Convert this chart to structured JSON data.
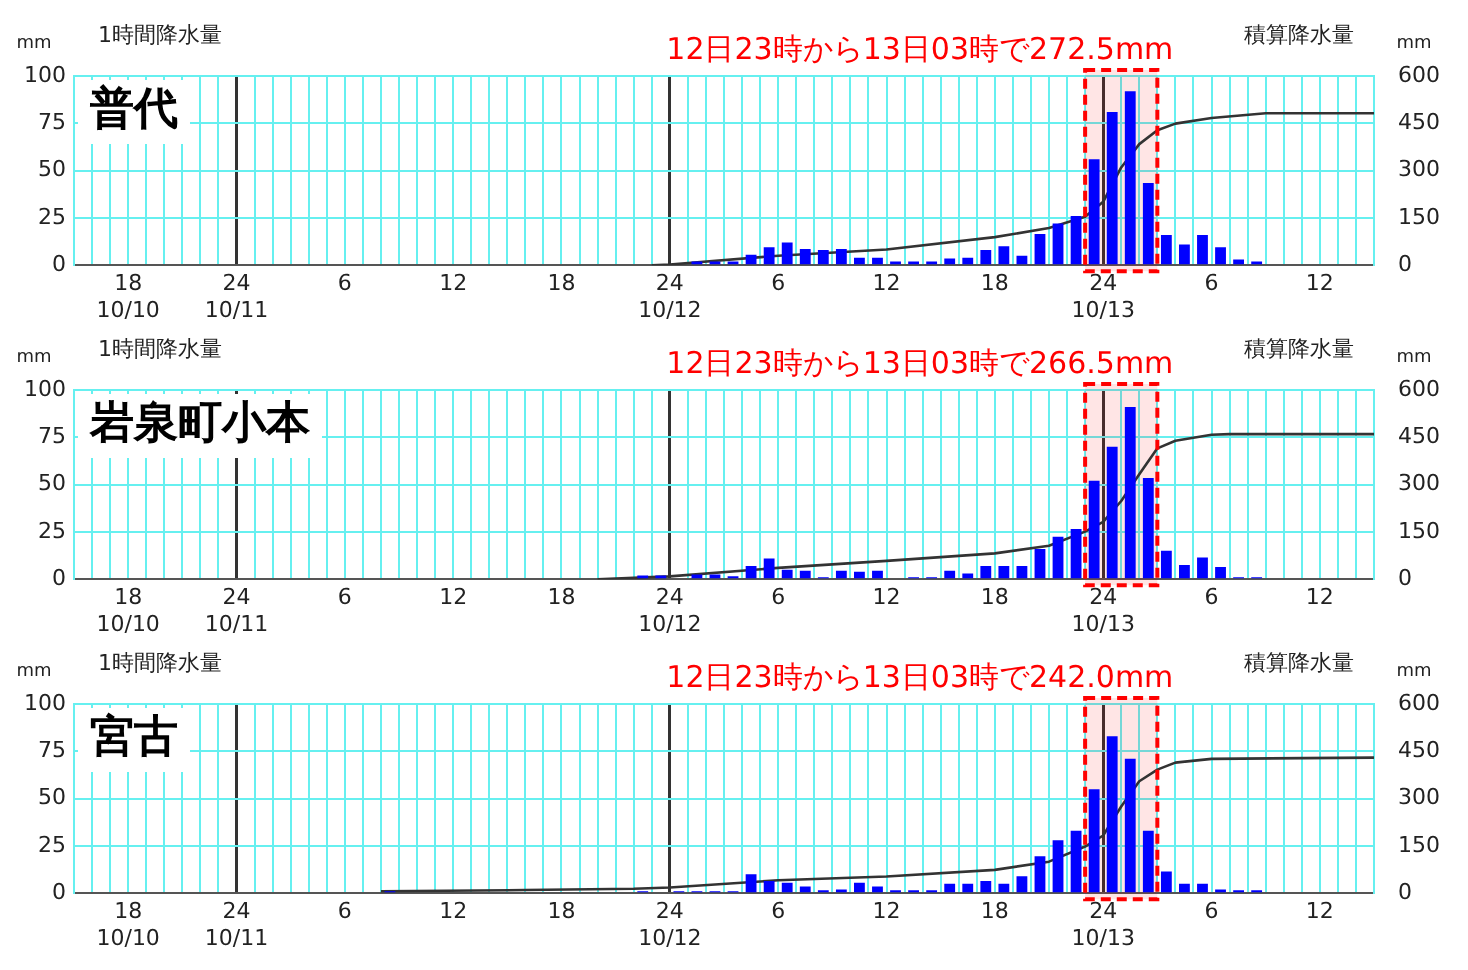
{
  "chart_data": [
    {
      "type": "bar",
      "title": "普代",
      "ylabel": "1時間降水量",
      "y2label": "積算降水量",
      "annotations": [
        "mm",
        "mm"
      ],
      "xlim": [
        "--10-10T15:00",
        "--10-13T15:00"
      ],
      "ylim": [
        0,
        100
      ],
      "yticks": [
        0,
        25,
        50,
        75,
        100
      ],
      "y2lim": [
        0,
        600
      ],
      "y2ticks": [
        0,
        150,
        300,
        450,
        600
      ],
      "grid": true,
      "marker": "none",
      "line_style": "solid",
      "xticks": [
        {
          "value": "--10-10T15:00",
          "label": null
        },
        {
          "value": "--10-10T16:00",
          "label": null
        },
        {
          "value": "--10-10T17:00",
          "label": null
        },
        {
          "value": "--10-10T18:00",
          "label": "18\n10/10"
        },
        {
          "value": "--10-10T19:00",
          "label": null
        },
        {
          "value": "--10-10T20:00",
          "label": null
        },
        {
          "value": "--10-10T21:00",
          "label": null
        },
        {
          "value": "--10-10T22:00",
          "label": null
        },
        {
          "value": "--10-10T23:00",
          "label": null
        },
        {
          "value": "--10-11T00:00",
          "label": "24\n10/11"
        },
        {
          "value": "--10-11T01:00",
          "label": null
        },
        {
          "value": "--10-11T02:00",
          "label": null
        },
        {
          "value": "--10-11T03:00",
          "label": null
        },
        {
          "value": "--10-11T04:00",
          "label": null
        },
        {
          "value": "--10-11T05:00",
          "label": null
        },
        {
          "value": "--10-11T06:00",
          "label": "6"
        },
        {
          "value": "--10-11T07:00",
          "label": null
        },
        {
          "value": "--10-11T08:00",
          "label": null
        },
        {
          "value": "--10-11T09:00",
          "label": null
        },
        {
          "value": "--10-11T10:00",
          "label": null
        },
        {
          "value": "--10-11T11:00",
          "label": null
        },
        {
          "value": "--10-11T12:00",
          "label": "12"
        },
        {
          "value": "--10-11T13:00",
          "label": null
        },
        {
          "value": "--10-11T14:00",
          "label": null
        },
        {
          "value": "--10-11T15:00",
          "label": null
        },
        {
          "value": "--10-11T16:00",
          "label": null
        },
        {
          "value": "--10-11T17:00",
          "label": null
        },
        {
          "value": "--10-11T18:00",
          "label": "18"
        },
        {
          "value": "--10-11T19:00",
          "label": null
        },
        {
          "value": "--10-11T20:00",
          "label": null
        },
        {
          "value": "--10-11T21:00",
          "label": null
        },
        {
          "value": "--10-11T22:00",
          "label": null
        },
        {
          "value": "--10-11T23:00",
          "label": null
        },
        {
          "value": "--10-12T00:00",
          "label": "24\n10/12"
        },
        {
          "value": "--10-12T01:00",
          "label": null
        },
        {
          "value": "--10-12T02:00",
          "label": null
        },
        {
          "value": "--10-12T03:00",
          "label": null
        },
        {
          "value": "--10-12T04:00",
          "label": null
        },
        {
          "value": "--10-12T05:00",
          "label": null
        },
        {
          "value": "--10-12T06:00",
          "label": "6"
        },
        {
          "value": "--10-12T07:00",
          "label": null
        },
        {
          "value": "--10-12T08:00",
          "label": null
        },
        {
          "value": "--10-12T09:00",
          "label": null
        },
        {
          "value": "--10-12T10:00",
          "label": null
        },
        {
          "value": "--10-12T11:00",
          "label": null
        },
        {
          "value": "--10-12T12:00",
          "label": "12"
        },
        {
          "value": "--10-12T13:00",
          "label": null
        },
        {
          "value": "--10-12T14:00",
          "label": null
        },
        {
          "value": "--10-12T15:00",
          "label": null
        },
        {
          "value": "--10-12T16:00",
          "label": null
        },
        {
          "value": "--10-12T17:00",
          "label": null
        },
        {
          "value": "--10-12T18:00",
          "label": "18"
        },
        {
          "value": "--10-12T19:00",
          "label": null
        },
        {
          "value": "--10-12T20:00",
          "label": null
        },
        {
          "value": "--10-12T21:00",
          "label": null
        },
        {
          "value": "--10-12T22:00",
          "label": null
        },
        {
          "value": "--10-12T23:00",
          "label": null
        },
        {
          "value": "--10-13T00:00",
          "label": "24\n10/13"
        },
        {
          "value": "--10-13T01:00",
          "label": null
        },
        {
          "value": "--10-13T02:00",
          "label": null
        },
        {
          "value": "--10-13T03:00",
          "label": null
        },
        {
          "value": "--10-13T04:00",
          "label": null
        },
        {
          "value": "--10-13T05:00",
          "label": null
        },
        {
          "value": "--10-13T06:00",
          "label": "6"
        },
        {
          "value": "--10-13T07:00",
          "label": null
        },
        {
          "value": "--10-13T08:00",
          "label": null
        },
        {
          "value": "--10-13T09:00",
          "label": null
        },
        {
          "value": "--10-13T10:00",
          "label": null
        },
        {
          "value": "--10-13T11:00",
          "label": null
        },
        {
          "value": "--10-13T12:00",
          "label": "12"
        },
        {
          "value": "--10-13T13:00",
          "label": null
        },
        {
          "value": "--10-13T14:00",
          "label": null
        },
        {
          "value": "--10-13T15:00",
          "label": null
        }
      ],
      "bands": [
        {
          "axis": "x",
          "from": "--10-12T23:00",
          "to": "--10-13T03:00",
          "label": "12日23時から13日03時で272.5mm",
          "color": "#ff0000"
        }
      ],
      "series": [
        {
          "color": "#0000ff",
          "x": [
            "--10-12T01:30",
            "--10-12T02:30",
            "--10-12T03:30",
            "--10-12T04:30",
            "--10-12T05:30",
            "--10-12T06:30",
            "--10-12T07:30",
            "--10-12T08:30",
            "--10-12T09:30",
            "--10-12T10:30",
            "--10-12T11:30",
            "--10-12T12:30",
            "--10-12T13:30",
            "--10-12T14:30",
            "--10-12T15:30",
            "--10-12T16:30",
            "--10-12T17:30",
            "--10-12T18:30",
            "--10-12T19:30",
            "--10-12T20:30",
            "--10-12T21:30",
            "--10-12T22:30",
            "--10-12T23:30",
            "--10-13T00:30",
            "--10-13T01:30",
            "--10-13T02:30",
            "--10-13T03:30",
            "--10-13T04:30",
            "--10-13T05:30",
            "--10-13T06:30",
            "--10-13T07:30",
            "--10-13T08:30"
          ],
          "values": [
            2,
            2,
            2,
            5.5,
            9.5,
            12,
            8.5,
            8,
            8.5,
            4,
            4,
            2,
            2,
            2,
            3.5,
            4,
            8,
            10,
            5,
            16.5,
            22,
            26,
            56,
            81,
            92,
            43.5,
            16,
            11,
            16,
            9.5,
            3,
            2
          ]
        },
        {
          "type": "line",
          "axis": "y2",
          "color": "#333333",
          "x": [
            "--10-11T23:00",
            "--10-12T00:00",
            "--10-12T06:00",
            "--10-12T12:00",
            "--10-12T18:00",
            "--10-12T21:00",
            "--10-12T23:00",
            "--10-13T00:00",
            "--10-13T01:00",
            "--10-13T02:00",
            "--10-13T03:00",
            "--10-13T04:00",
            "--10-13T06:00",
            "--10-13T09:00",
            "--10-13T15:00"
          ],
          "values": [
            0,
            2,
            30,
            50,
            89,
            118,
            154,
            201,
            310,
            384,
            428,
            449,
            467,
            482,
            482
          ]
        }
      ]
    },
    {
      "type": "bar",
      "title": "岩泉町小本",
      "ylabel": "1時間降水量",
      "y2label": "積算降水量",
      "annotations": [
        "mm",
        "mm"
      ],
      "xlim": [
        "--10-10T15:00",
        "--10-13T15:00"
      ],
      "ylim": [
        0,
        100
      ],
      "yticks": [
        0,
        25,
        50,
        75,
        100
      ],
      "y2lim": [
        0,
        600
      ],
      "y2ticks": [
        0,
        150,
        300,
        450,
        600
      ],
      "grid": true,
      "marker": "none",
      "line_style": "solid",
      "xticks": [
        {
          "value": "--10-10T15:00",
          "label": null
        },
        {
          "value": "--10-10T16:00",
          "label": null
        },
        {
          "value": "--10-10T17:00",
          "label": null
        },
        {
          "value": "--10-10T18:00",
          "label": "18\n10/10"
        },
        {
          "value": "--10-10T19:00",
          "label": null
        },
        {
          "value": "--10-10T20:00",
          "label": null
        },
        {
          "value": "--10-10T21:00",
          "label": null
        },
        {
          "value": "--10-10T22:00",
          "label": null
        },
        {
          "value": "--10-10T23:00",
          "label": null
        },
        {
          "value": "--10-11T00:00",
          "label": "24\n10/11"
        },
        {
          "value": "--10-11T01:00",
          "label": null
        },
        {
          "value": "--10-11T02:00",
          "label": null
        },
        {
          "value": "--10-11T03:00",
          "label": null
        },
        {
          "value": "--10-11T04:00",
          "label": null
        },
        {
          "value": "--10-11T05:00",
          "label": null
        },
        {
          "value": "--10-11T06:00",
          "label": "6"
        },
        {
          "value": "--10-11T07:00",
          "label": null
        },
        {
          "value": "--10-11T08:00",
          "label": null
        },
        {
          "value": "--10-11T09:00",
          "label": null
        },
        {
          "value": "--10-11T10:00",
          "label": null
        },
        {
          "value": "--10-11T11:00",
          "label": null
        },
        {
          "value": "--10-11T12:00",
          "label": "12"
        },
        {
          "value": "--10-11T13:00",
          "label": null
        },
        {
          "value": "--10-11T14:00",
          "label": null
        },
        {
          "value": "--10-11T15:00",
          "label": null
        },
        {
          "value": "--10-11T16:00",
          "label": null
        },
        {
          "value": "--10-11T17:00",
          "label": null
        },
        {
          "value": "--10-11T18:00",
          "label": "18"
        },
        {
          "value": "--10-11T19:00",
          "label": null
        },
        {
          "value": "--10-11T20:00",
          "label": null
        },
        {
          "value": "--10-11T21:00",
          "label": null
        },
        {
          "value": "--10-11T22:00",
          "label": null
        },
        {
          "value": "--10-11T23:00",
          "label": null
        },
        {
          "value": "--10-12T00:00",
          "label": "24\n10/12"
        },
        {
          "value": "--10-12T01:00",
          "label": null
        },
        {
          "value": "--10-12T02:00",
          "label": null
        },
        {
          "value": "--10-12T03:00",
          "label": null
        },
        {
          "value": "--10-12T04:00",
          "label": null
        },
        {
          "value": "--10-12T05:00",
          "label": null
        },
        {
          "value": "--10-12T06:00",
          "label": "6"
        },
        {
          "value": "--10-12T07:00",
          "label": null
        },
        {
          "value": "--10-12T08:00",
          "label": null
        },
        {
          "value": "--10-12T09:00",
          "label": null
        },
        {
          "value": "--10-12T10:00",
          "label": null
        },
        {
          "value": "--10-12T11:00",
          "label": null
        },
        {
          "value": "--10-12T12:00",
          "label": "12"
        },
        {
          "value": "--10-12T13:00",
          "label": null
        },
        {
          "value": "--10-12T14:00",
          "label": null
        },
        {
          "value": "--10-12T15:00",
          "label": null
        },
        {
          "value": "--10-12T16:00",
          "label": null
        },
        {
          "value": "--10-12T17:00",
          "label": null
        },
        {
          "value": "--10-12T18:00",
          "label": "18"
        },
        {
          "value": "--10-12T19:00",
          "label": null
        },
        {
          "value": "--10-12T20:00",
          "label": null
        },
        {
          "value": "--10-12T21:00",
          "label": null
        },
        {
          "value": "--10-12T22:00",
          "label": null
        },
        {
          "value": "--10-12T23:00",
          "label": null
        },
        {
          "value": "--10-13T00:00",
          "label": "24\n10/13"
        },
        {
          "value": "--10-13T01:00",
          "label": null
        },
        {
          "value": "--10-13T02:00",
          "label": null
        },
        {
          "value": "--10-13T03:00",
          "label": null
        },
        {
          "value": "--10-13T04:00",
          "label": null
        },
        {
          "value": "--10-13T05:00",
          "label": null
        },
        {
          "value": "--10-13T06:00",
          "label": "6"
        },
        {
          "value": "--10-13T07:00",
          "label": null
        },
        {
          "value": "--10-13T08:00",
          "label": null
        },
        {
          "value": "--10-13T09:00",
          "label": null
        },
        {
          "value": "--10-13T10:00",
          "label": null
        },
        {
          "value": "--10-13T11:00",
          "label": null
        },
        {
          "value": "--10-13T12:00",
          "label": "12"
        },
        {
          "value": "--10-13T13:00",
          "label": null
        },
        {
          "value": "--10-13T14:00",
          "label": null
        },
        {
          "value": "--10-13T15:00",
          "label": null
        }
      ],
      "bands": [
        {
          "axis": "x",
          "from": "--10-12T23:00",
          "to": "--10-13T03:00",
          "label": "12日23時から13日03時で266.5mm",
          "color": "#ff0000"
        }
      ],
      "series": [
        {
          "color": "#0000ff",
          "x": [
            "--10-11T22:30",
            "--10-11T23:30",
            "--10-12T01:30",
            "--10-12T02:30",
            "--10-12T03:30",
            "--10-12T04:30",
            "--10-12T05:30",
            "--10-12T06:30",
            "--10-12T07:30",
            "--10-12T08:30",
            "--10-12T09:30",
            "--10-12T10:30",
            "--10-12T11:30",
            "--10-12T13:30",
            "--10-12T14:30",
            "--10-12T15:30",
            "--10-12T16:30",
            "--10-12T17:30",
            "--10-12T18:30",
            "--10-12T19:30",
            "--10-12T20:30",
            "--10-12T21:30",
            "--10-12T22:30",
            "--10-12T23:30",
            "--10-13T00:30",
            "--10-13T01:30",
            "--10-13T02:30",
            "--10-13T03:30",
            "--10-13T04:30",
            "--10-13T05:30",
            "--10-13T06:30",
            "--10-13T07:30",
            "--10-13T08:30"
          ],
          "values": [
            2,
            2,
            2.5,
            2.5,
            1.5,
            7,
            11,
            5,
            4.5,
            1,
            4.5,
            4,
            4.5,
            1,
            1,
            4.5,
            3,
            7,
            7,
            7,
            16,
            22.5,
            26.5,
            52,
            70,
            91,
            53.5,
            15,
            7.5,
            11.5,
            6.5,
            1,
            1
          ]
        },
        {
          "type": "line",
          "axis": "y2",
          "color": "#333333",
          "x": [
            "--10-11T20:00",
            "--10-12T00:00",
            "--10-12T06:00",
            "--10-12T12:00",
            "--10-12T18:00",
            "--10-12T21:00",
            "--10-12T23:00",
            "--10-13T00:00",
            "--10-13T01:00",
            "--10-13T02:00",
            "--10-13T03:00",
            "--10-13T04:00",
            "--10-13T06:00",
            "--10-13T07:00",
            "--10-13T15:00"
          ],
          "values": [
            0,
            9,
            36,
            58,
            82,
            106,
            151,
            182,
            248,
            333,
            415,
            439,
            458,
            460,
            460
          ]
        }
      ]
    },
    {
      "type": "bar",
      "title": "宮古",
      "ylabel": "1時間降水量",
      "y2label": "積算降水量",
      "annotations": [
        "mm",
        "mm"
      ],
      "xlim": [
        "--10-10T15:00",
        "--10-13T15:00"
      ],
      "ylim": [
        0,
        100
      ],
      "yticks": [
        0,
        25,
        50,
        75,
        100
      ],
      "y2lim": [
        0,
        600
      ],
      "y2ticks": [
        0,
        150,
        300,
        450,
        600
      ],
      "grid": true,
      "marker": "none",
      "line_style": "solid",
      "xticks": [
        {
          "value": "--10-10T15:00",
          "label": null
        },
        {
          "value": "--10-10T16:00",
          "label": null
        },
        {
          "value": "--10-10T17:00",
          "label": null
        },
        {
          "value": "--10-10T18:00",
          "label": "18\n10/10"
        },
        {
          "value": "--10-10T19:00",
          "label": null
        },
        {
          "value": "--10-10T20:00",
          "label": null
        },
        {
          "value": "--10-10T21:00",
          "label": null
        },
        {
          "value": "--10-10T22:00",
          "label": null
        },
        {
          "value": "--10-10T23:00",
          "label": null
        },
        {
          "value": "--10-11T00:00",
          "label": "24\n10/11"
        },
        {
          "value": "--10-11T01:00",
          "label": null
        },
        {
          "value": "--10-11T02:00",
          "label": null
        },
        {
          "value": "--10-11T03:00",
          "label": null
        },
        {
          "value": "--10-11T04:00",
          "label": null
        },
        {
          "value": "--10-11T05:00",
          "label": null
        },
        {
          "value": "--10-11T06:00",
          "label": "6"
        },
        {
          "value": "--10-11T07:00",
          "label": null
        },
        {
          "value": "--10-11T08:00",
          "label": null
        },
        {
          "value": "--10-11T09:00",
          "label": null
        },
        {
          "value": "--10-11T10:00",
          "label": null
        },
        {
          "value": "--10-11T11:00",
          "label": null
        },
        {
          "value": "--10-11T12:00",
          "label": "12"
        },
        {
          "value": "--10-11T13:00",
          "label": null
        },
        {
          "value": "--10-11T14:00",
          "label": null
        },
        {
          "value": "--10-11T15:00",
          "label": null
        },
        {
          "value": "--10-11T16:00",
          "label": null
        },
        {
          "value": "--10-11T17:00",
          "label": null
        },
        {
          "value": "--10-11T18:00",
          "label": "18"
        },
        {
          "value": "--10-11T19:00",
          "label": null
        },
        {
          "value": "--10-11T20:00",
          "label": null
        },
        {
          "value": "--10-11T21:00",
          "label": null
        },
        {
          "value": "--10-11T22:00",
          "label": null
        },
        {
          "value": "--10-11T23:00",
          "label": null
        },
        {
          "value": "--10-12T00:00",
          "label": "24\n10/12"
        },
        {
          "value": "--10-12T01:00",
          "label": null
        },
        {
          "value": "--10-12T02:00",
          "label": null
        },
        {
          "value": "--10-12T03:00",
          "label": null
        },
        {
          "value": "--10-12T04:00",
          "label": null
        },
        {
          "value": "--10-12T05:00",
          "label": null
        },
        {
          "value": "--10-12T06:00",
          "label": "6"
        },
        {
          "value": "--10-12T07:00",
          "label": null
        },
        {
          "value": "--10-12T08:00",
          "label": null
        },
        {
          "value": "--10-12T09:00",
          "label": null
        },
        {
          "value": "--10-12T10:00",
          "label": null
        },
        {
          "value": "--10-12T11:00",
          "label": null
        },
        {
          "value": "--10-12T12:00",
          "label": "12"
        },
        {
          "value": "--10-12T13:00",
          "label": null
        },
        {
          "value": "--10-12T14:00",
          "label": null
        },
        {
          "value": "--10-12T15:00",
          "label": null
        },
        {
          "value": "--10-12T16:00",
          "label": null
        },
        {
          "value": "--10-12T17:00",
          "label": null
        },
        {
          "value": "--10-12T18:00",
          "label": "18"
        },
        {
          "value": "--10-12T19:00",
          "label": null
        },
        {
          "value": "--10-12T20:00",
          "label": null
        },
        {
          "value": "--10-12T21:00",
          "label": null
        },
        {
          "value": "--10-12T22:00",
          "label": null
        },
        {
          "value": "--10-12T23:00",
          "label": null
        },
        {
          "value": "--10-13T00:00",
          "label": "24\n10/13"
        },
        {
          "value": "--10-13T01:00",
          "label": null
        },
        {
          "value": "--10-13T02:00",
          "label": null
        },
        {
          "value": "--10-13T03:00",
          "label": null
        },
        {
          "value": "--10-13T04:00",
          "label": null
        },
        {
          "value": "--10-13T05:00",
          "label": null
        },
        {
          "value": "--10-13T06:00",
          "label": "6"
        },
        {
          "value": "--10-13T07:00",
          "label": null
        },
        {
          "value": "--10-13T08:00",
          "label": null
        },
        {
          "value": "--10-13T09:00",
          "label": null
        },
        {
          "value": "--10-13T10:00",
          "label": null
        },
        {
          "value": "--10-13T11:00",
          "label": null
        },
        {
          "value": "--10-13T12:00",
          "label": "12"
        },
        {
          "value": "--10-13T13:00",
          "label": null
        },
        {
          "value": "--10-13T14:00",
          "label": null
        },
        {
          "value": "--10-13T15:00",
          "label": null
        }
      ],
      "bands": [
        {
          "axis": "x",
          "from": "--10-12T23:00",
          "to": "--10-13T03:00",
          "label": "12日23時から13日03時で242.0mm",
          "color": "#ff0000"
        }
      ],
      "series": [
        {
          "color": "#0000ff",
          "x": [
            "--10-11T08:30",
            "--10-11T22:30",
            "--10-12T00:30",
            "--10-12T01:30",
            "--10-12T02:30",
            "--10-12T03:30",
            "--10-12T04:30",
            "--10-12T05:30",
            "--10-12T06:30",
            "--10-12T07:30",
            "--10-12T08:30",
            "--10-12T09:30",
            "--10-12T10:30",
            "--10-12T11:30",
            "--10-12T12:30",
            "--10-12T13:30",
            "--10-12T14:30",
            "--10-12T15:30",
            "--10-12T16:30",
            "--10-12T17:30",
            "--10-12T18:30",
            "--10-12T19:30",
            "--10-12T20:30",
            "--10-12T21:30",
            "--10-12T22:30",
            "--10-12T23:30",
            "--10-13T00:30",
            "--10-13T01:30",
            "--10-13T02:30",
            "--10-13T03:30",
            "--10-13T04:30",
            "--10-13T05:30",
            "--10-13T06:30",
            "--10-13T07:30",
            "--10-13T08:30"
          ],
          "values": [
            1,
            1,
            1,
            1,
            1,
            1,
            10,
            6.5,
            5.5,
            3.5,
            1.5,
            2,
            5.5,
            3.5,
            1.5,
            1.5,
            1.5,
            5,
            5,
            6.5,
            5,
            9,
            19.5,
            28,
            33,
            55,
            83,
            71,
            33,
            11.5,
            5,
            5,
            2,
            1.5,
            1.5
          ]
        },
        {
          "type": "line",
          "axis": "y2",
          "color": "#333333",
          "x": [
            "--10-11T08:00",
            "--10-11T16:00",
            "--10-11T22:00",
            "--10-12T00:00",
            "--10-12T06:00",
            "--10-12T12:00",
            "--10-12T18:00",
            "--10-12T21:00",
            "--10-12T23:00",
            "--10-13T00:00",
            "--10-13T01:00",
            "--10-13T02:00",
            "--10-13T03:00",
            "--10-13T04:00",
            "--10-13T06:00",
            "--10-13T15:00"
          ],
          "values": [
            6,
            10,
            14,
            18,
            41,
            53,
            74,
            100,
            148,
            183,
            275,
            355,
            392,
            414,
            426,
            430
          ]
        }
      ]
    }
  ]
}
